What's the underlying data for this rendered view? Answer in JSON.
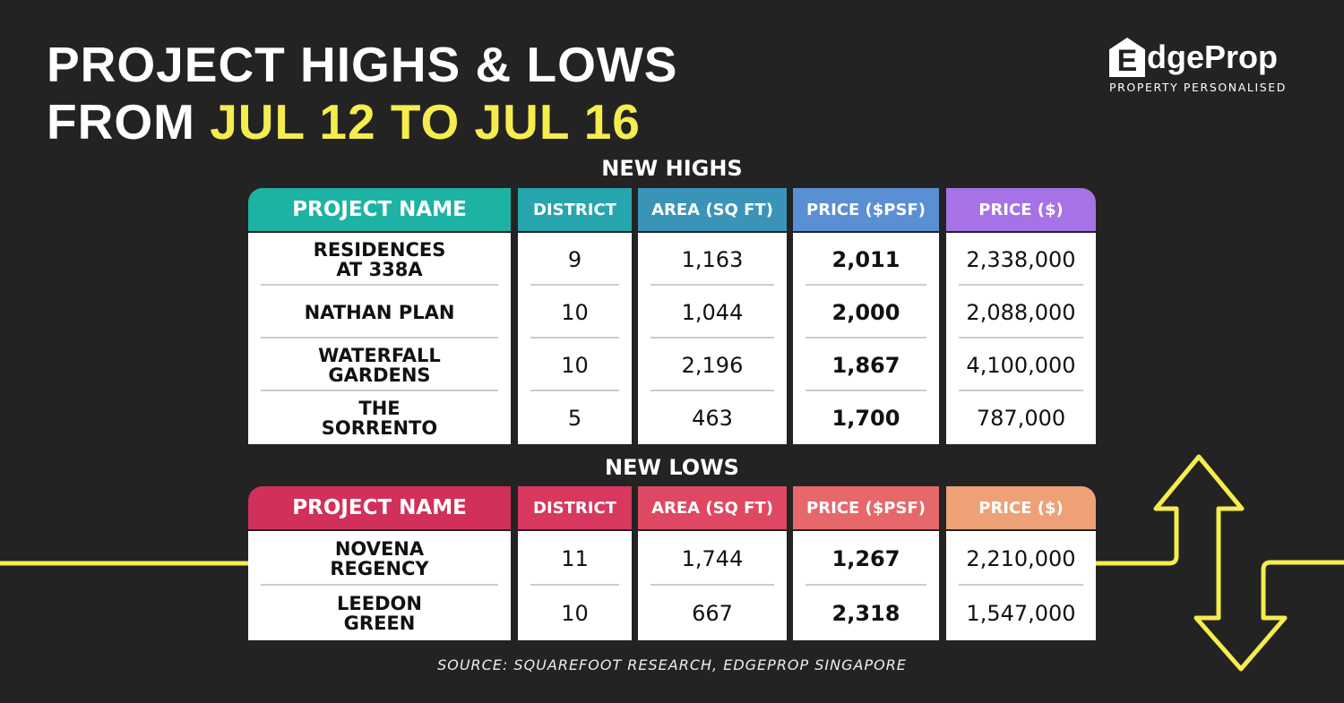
{
  "title": {
    "line1": "PROJECT HIGHS & LOWS",
    "line2_prefix": "FROM ",
    "line2_highlight": "JUL 12 TO JUL 16"
  },
  "logo": {
    "brand": "EdgeProp",
    "tagline": "PROPERTY PERSONALISED"
  },
  "colors": {
    "background": "#232323",
    "highlight": "#f6ec4e",
    "highs_header": [
      "#1db3a4",
      "#27a5ad",
      "#3a94b8",
      "#5a8fd3",
      "#a672e6"
    ],
    "lows_header": [
      "#d1305a",
      "#d8375e",
      "#df4862",
      "#e6686b",
      "#eea177"
    ]
  },
  "columns": [
    "PROJECT NAME",
    "DISTRICT",
    "AREA (SQ FT)",
    "PRICE ($PSF)",
    "PRICE ($)"
  ],
  "highs": {
    "heading": "NEW HIGHS",
    "rows": [
      [
        "RESIDENCES AT 338A",
        "9",
        "1,163",
        "2,011",
        "2,338,000"
      ],
      [
        "NATHAN PLAN",
        "10",
        "1,044",
        "2,000",
        "2,088,000"
      ],
      [
        "WATERFALL GARDENS",
        "10",
        "2,196",
        "1,867",
        "4,100,000"
      ],
      [
        "THE SORRENTO",
        "5",
        "463",
        "1,700",
        "787,000"
      ]
    ]
  },
  "lows": {
    "heading": "NEW LOWS",
    "rows": [
      [
        "NOVENA REGENCY",
        "11",
        "1,744",
        "1,267",
        "2,210,000"
      ],
      [
        "LEEDON GREEN",
        "10",
        "667",
        "2,318",
        "1,547,000"
      ]
    ]
  },
  "source": "SOURCE: SQUAREFOOT RESEARCH, EDGEPROP SINGAPORE",
  "icons": {
    "arrows": "up-down-arrow-icon",
    "logo": "house-icon"
  }
}
